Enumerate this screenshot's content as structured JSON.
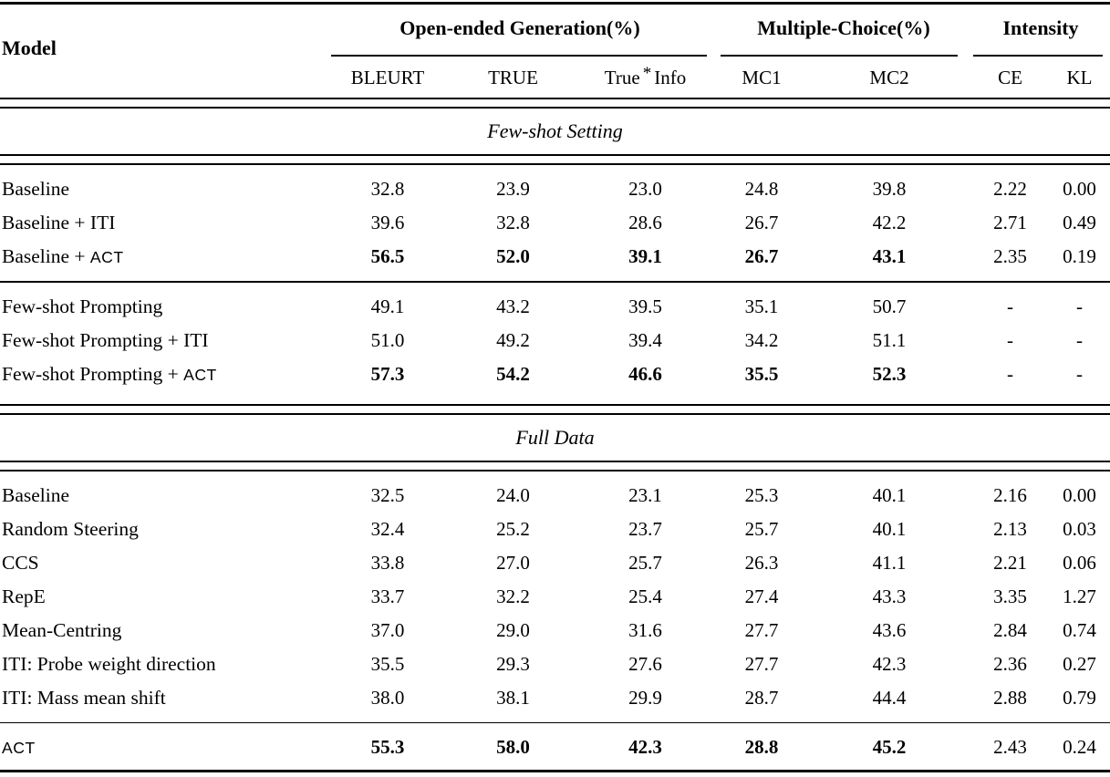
{
  "table": {
    "model_header": "Model",
    "groups": [
      {
        "label": "Open-ended Generation(%)",
        "subs": [
          "BLEURT",
          "TRUE",
          "True * Info"
        ]
      },
      {
        "label": "Multiple-Choice(%)",
        "subs": [
          "MC1",
          "MC2"
        ]
      },
      {
        "label": "Intensity",
        "subs": [
          "CE",
          "KL"
        ]
      }
    ],
    "sections": [
      {
        "title": "Few-shot Setting",
        "row_groups": [
          [
            {
              "model": "Baseline",
              "values": [
                "32.8",
                "23.9",
                "23.0",
                "24.8",
                "39.8",
                "2.22",
                "0.00"
              ],
              "bold": []
            },
            {
              "model": "Baseline + ITI",
              "values": [
                "39.6",
                "32.8",
                "28.6",
                "26.7",
                "42.2",
                "2.71",
                "0.49"
              ],
              "bold": []
            },
            {
              "model": "Baseline + ACT",
              "values": [
                "56.5",
                "52.0",
                "39.1",
                "26.7",
                "43.1",
                "2.35",
                "0.19"
              ],
              "bold": [
                0,
                1,
                2,
                3,
                4
              ]
            }
          ],
          [
            {
              "model": "Few-shot Prompting",
              "values": [
                "49.1",
                "43.2",
                "39.5",
                "35.1",
                "50.7",
                "-",
                "-"
              ],
              "bold": []
            },
            {
              "model": "Few-shot Prompting + ITI",
              "values": [
                "51.0",
                "49.2",
                "39.4",
                "34.2",
                "51.1",
                "-",
                "-"
              ],
              "bold": []
            },
            {
              "model": "Few-shot Prompting + ACT",
              "values": [
                "57.3",
                "54.2",
                "46.6",
                "35.5",
                "52.3",
                "-",
                "-"
              ],
              "bold": [
                0,
                1,
                2,
                3,
                4
              ]
            }
          ]
        ]
      },
      {
        "title": "Full Data",
        "row_groups": [
          [
            {
              "model": "Baseline",
              "values": [
                "32.5",
                "24.0",
                "23.1",
                "25.3",
                "40.1",
                "2.16",
                "0.00"
              ],
              "bold": []
            },
            {
              "model": "Random Steering",
              "values": [
                "32.4",
                "25.2",
                "23.7",
                "25.7",
                "40.1",
                "2.13",
                "0.03"
              ],
              "bold": []
            },
            {
              "model": "CCS",
              "values": [
                "33.8",
                "27.0",
                "25.7",
                "26.3",
                "41.1",
                "2.21",
                "0.06"
              ],
              "bold": []
            },
            {
              "model": "RepE",
              "values": [
                "33.7",
                "32.2",
                "25.4",
                "27.4",
                "43.3",
                "3.35",
                "1.27"
              ],
              "bold": []
            },
            {
              "model": "Mean-Centring",
              "values": [
                "37.0",
                "29.0",
                "31.6",
                "27.7",
                "43.6",
                "2.84",
                "0.74"
              ],
              "bold": []
            },
            {
              "model": "ITI: Probe weight direction",
              "values": [
                "35.5",
                "29.3",
                "27.6",
                "27.7",
                "42.3",
                "2.36",
                "0.27"
              ],
              "bold": []
            },
            {
              "model": "ITI: Mass mean shift",
              "values": [
                "38.0",
                "38.1",
                "29.9",
                "28.7",
                "44.4",
                "2.88",
                "0.79"
              ],
              "bold": []
            }
          ],
          [
            {
              "model": "ACT",
              "values": [
                "55.3",
                "58.0",
                "42.3",
                "28.8",
                "45.2",
                "2.43",
                "0.24"
              ],
              "bold": [
                0,
                1,
                2,
                3,
                4
              ]
            }
          ]
        ]
      }
    ]
  }
}
